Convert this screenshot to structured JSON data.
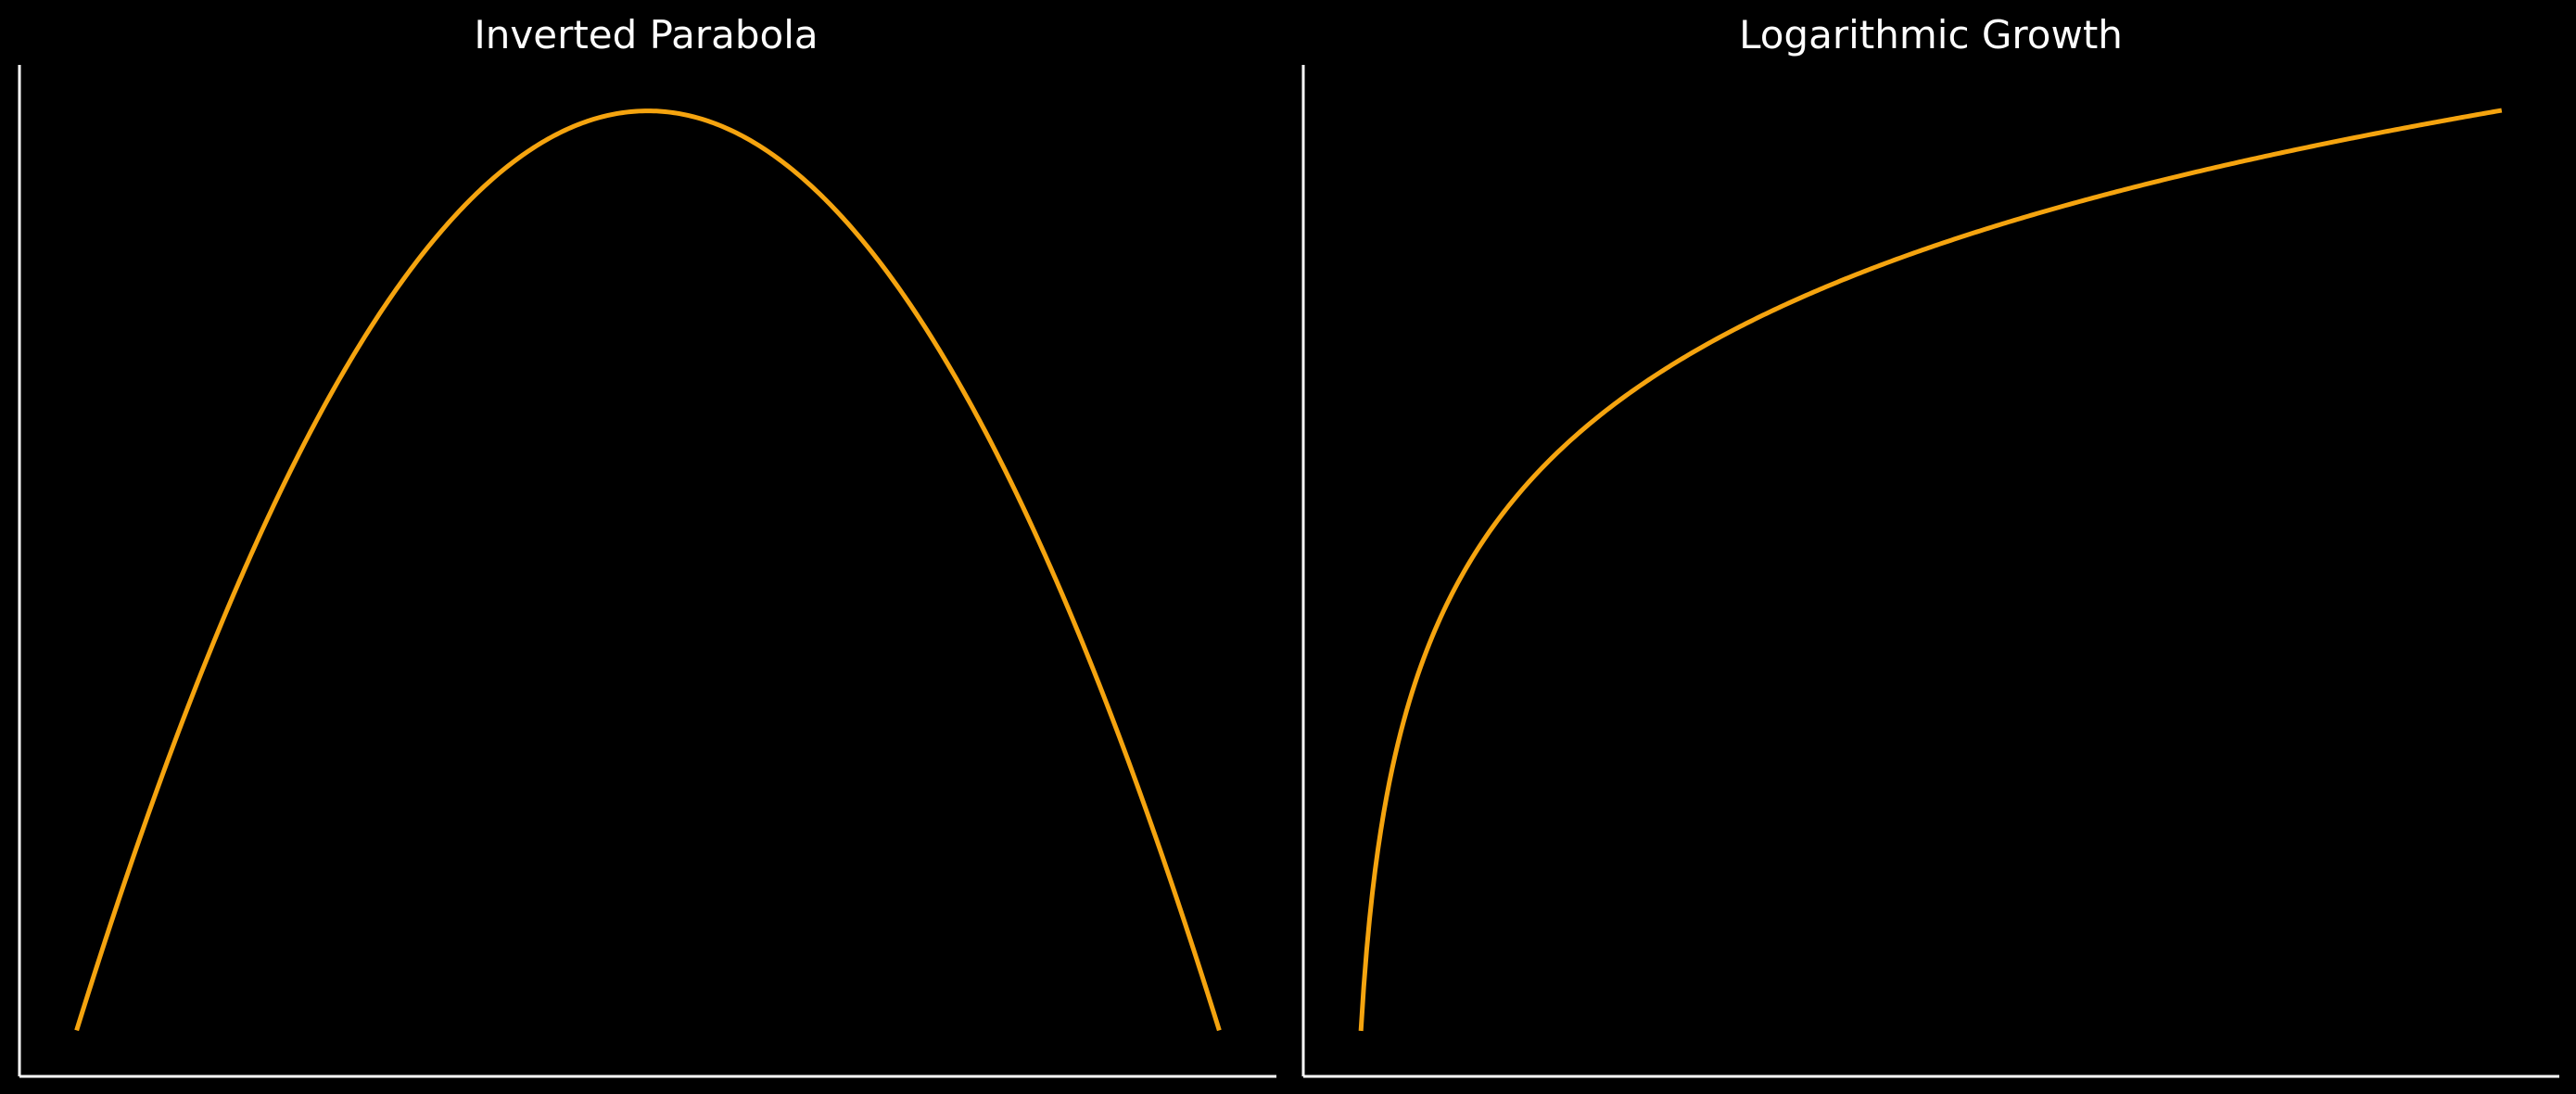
{
  "colors": {
    "background": "#000000",
    "axes": "#ffffff",
    "line": "#f5a40f"
  },
  "chart_data": [
    {
      "type": "line",
      "title": "Inverted Parabola",
      "xlabel": "",
      "ylabel": "",
      "function": "y = -x^2",
      "x": [
        -10,
        -9,
        -8,
        -7,
        -6,
        -5,
        -4,
        -3,
        -2,
        -1,
        0,
        1,
        2,
        3,
        4,
        5,
        6,
        7,
        8,
        9,
        10
      ],
      "y": [
        -100,
        -81,
        -64,
        -49,
        -36,
        -25,
        -16,
        -9,
        -4,
        -1,
        0,
        -1,
        -4,
        -9,
        -16,
        -25,
        -36,
        -49,
        -64,
        -81,
        -100
      ],
      "xlim": [
        -11,
        11
      ],
      "ylim": [
        -105,
        5
      ],
      "ticks": "hidden",
      "spines": [
        "left",
        "bottom"
      ],
      "grid": false,
      "legend": "none"
    },
    {
      "type": "line",
      "title": "Logarithmic Growth",
      "xlabel": "",
      "ylabel": "",
      "function": "y = ln(x)",
      "x": [
        0.1,
        0.2,
        0.3,
        0.5,
        0.75,
        1,
        1.5,
        2,
        3,
        4,
        5,
        6,
        7,
        8,
        9,
        10
      ],
      "y": [
        -2.303,
        -1.609,
        -1.204,
        -0.693,
        -0.288,
        0,
        0.405,
        0.693,
        1.099,
        1.386,
        1.609,
        1.792,
        1.946,
        2.079,
        2.197,
        2.303
      ],
      "xlim": [
        -0.4,
        10.5
      ],
      "ylim": [
        -2.53,
        2.53
      ],
      "ticks": "hidden",
      "spines": [
        "left",
        "bottom"
      ],
      "grid": false,
      "legend": "none"
    }
  ]
}
